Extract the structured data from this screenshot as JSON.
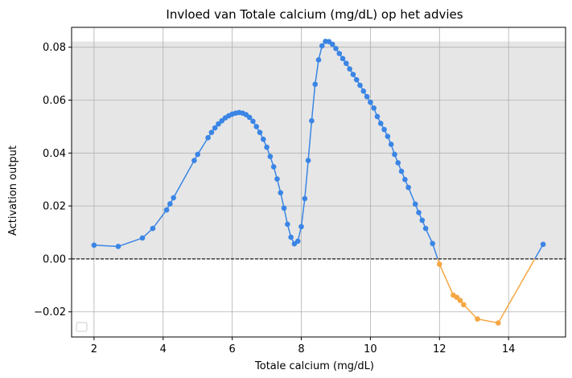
{
  "chart_data": {
    "type": "line",
    "title": "Invloed van Totale calcium (mg/dL) op het advies",
    "xlabel": "Totale calcium (mg/dL)",
    "ylabel": "Activation output",
    "xlim": [
      1.35,
      15.65
    ],
    "ylim": [
      -0.0295,
      0.0875
    ],
    "xticks": [
      2,
      4,
      6,
      8,
      10,
      12,
      14
    ],
    "xtick_labels": [
      "2",
      "4",
      "6",
      "8",
      "10",
      "12",
      "14"
    ],
    "yticks": [
      -0.02,
      0.0,
      0.02,
      0.04,
      0.06,
      0.08
    ],
    "ytick_labels": [
      "−0.02",
      "0.00",
      "0.02",
      "0.04",
      "0.06",
      "0.08"
    ],
    "grid": true,
    "shaded_band": [
      0.0,
      0.0822
    ],
    "reference_line_y": 0.0,
    "legend": "bottom-left (empty)",
    "colors": {
      "positive": "#3a85e5",
      "negative": "#f5a742",
      "band": "#e6e6e6",
      "grid": "#b0b0b0",
      "reference_line": "#000000"
    },
    "series": [
      {
        "points": [
          [
            2.0,
            0.0052
          ],
          [
            2.7,
            0.0047
          ],
          [
            3.4,
            0.0079
          ],
          [
            3.7,
            0.0115
          ],
          [
            4.1,
            0.0185
          ],
          [
            4.2,
            0.0208
          ],
          [
            4.3,
            0.0231
          ],
          [
            4.9,
            0.0372
          ],
          [
            5.0,
            0.0395
          ],
          [
            5.3,
            0.0458
          ],
          [
            5.4,
            0.0478
          ],
          [
            5.5,
            0.0495
          ],
          [
            5.6,
            0.051
          ],
          [
            5.7,
            0.0522
          ],
          [
            5.8,
            0.0533
          ],
          [
            5.9,
            0.0541
          ],
          [
            6.0,
            0.0547
          ],
          [
            6.1,
            0.0551
          ],
          [
            6.2,
            0.0553
          ],
          [
            6.3,
            0.0551
          ],
          [
            6.4,
            0.0545
          ],
          [
            6.5,
            0.0535
          ],
          [
            6.6,
            0.052
          ],
          [
            6.7,
            0.05
          ],
          [
            6.8,
            0.0478
          ],
          [
            6.9,
            0.0452
          ],
          [
            7.0,
            0.0422
          ],
          [
            7.1,
            0.0387
          ],
          [
            7.2,
            0.0348
          ],
          [
            7.3,
            0.0302
          ],
          [
            7.4,
            0.025
          ],
          [
            7.5,
            0.0192
          ],
          [
            7.6,
            0.0131
          ],
          [
            7.7,
            0.0082
          ],
          [
            7.8,
            0.0057
          ],
          [
            7.9,
            0.0067
          ],
          [
            8.0,
            0.0122
          ],
          [
            8.1,
            0.0228
          ],
          [
            8.2,
            0.0372
          ],
          [
            8.3,
            0.0522
          ],
          [
            8.4,
            0.066
          ],
          [
            8.5,
            0.0752
          ],
          [
            8.6,
            0.0805
          ],
          [
            8.7,
            0.0822
          ],
          [
            8.8,
            0.0821
          ],
          [
            8.9,
            0.0811
          ],
          [
            9.0,
            0.0795
          ],
          [
            9.1,
            0.0776
          ],
          [
            9.2,
            0.0757
          ],
          [
            9.3,
            0.0739
          ],
          [
            9.4,
            0.0718
          ],
          [
            9.5,
            0.0697
          ],
          [
            9.6,
            0.0677
          ],
          [
            9.7,
            0.0656
          ],
          [
            9.8,
            0.0634
          ],
          [
            9.9,
            0.0613
          ],
          [
            10.0,
            0.0592
          ],
          [
            10.1,
            0.057
          ],
          [
            10.2,
            0.0538
          ],
          [
            10.3,
            0.0512
          ],
          [
            10.4,
            0.0489
          ],
          [
            10.5,
            0.0463
          ],
          [
            10.6,
            0.0433
          ],
          [
            10.7,
            0.0395
          ],
          [
            10.8,
            0.0363
          ],
          [
            10.9,
            0.0331
          ],
          [
            11.0,
            0.03
          ],
          [
            11.1,
            0.027
          ],
          [
            11.3,
            0.0207
          ],
          [
            11.4,
            0.0175
          ],
          [
            11.5,
            0.0146
          ],
          [
            11.6,
            0.0115
          ],
          [
            11.8,
            0.0058
          ],
          [
            12.0,
            -0.002
          ],
          [
            12.4,
            -0.0137
          ],
          [
            12.5,
            -0.0145
          ],
          [
            12.6,
            -0.0157
          ],
          [
            12.7,
            -0.0173
          ],
          [
            13.1,
            -0.0227
          ],
          [
            13.7,
            -0.0242
          ],
          [
            15.0,
            0.0055
          ]
        ]
      }
    ]
  }
}
